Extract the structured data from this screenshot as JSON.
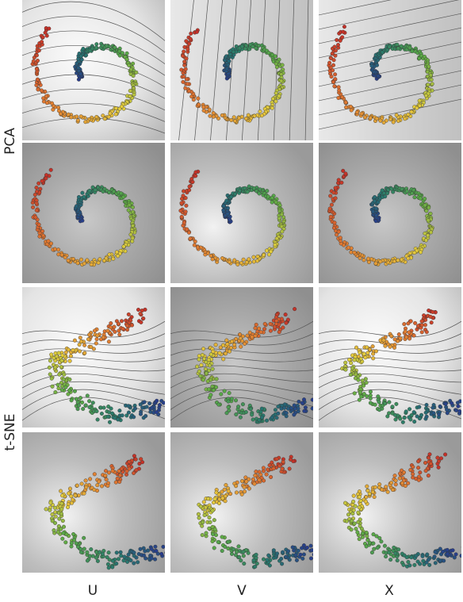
{
  "figure": {
    "row_labels": [
      "PCA",
      "t-SNE"
    ],
    "column_labels": [
      "U",
      "V",
      "X"
    ]
  }
}
